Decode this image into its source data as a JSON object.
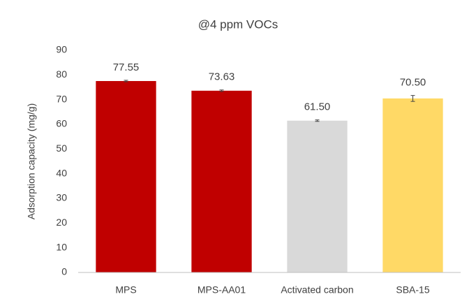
{
  "chart_data": {
    "type": "bar",
    "title": "@4 ppm VOCs",
    "y_label": "Adsorption capacity (mg/g)",
    "categories": [
      "MPS",
      "MPS-AA01",
      "Activated carbon",
      "SBA-15"
    ],
    "values": [
      77.55,
      73.63,
      61.5,
      70.5
    ],
    "value_labels": [
      "77.55",
      "73.63",
      "61.50",
      "70.50"
    ],
    "errors": [
      0.3,
      0.3,
      0.3,
      1.2
    ],
    "colors": [
      "#c00000",
      "#c00000",
      "#d9d9d9",
      "#ffd966"
    ],
    "ylim": [
      0,
      90
    ],
    "yticks": [
      0,
      10,
      20,
      30,
      40,
      50,
      60,
      70,
      80,
      90
    ],
    "grid": false
  }
}
